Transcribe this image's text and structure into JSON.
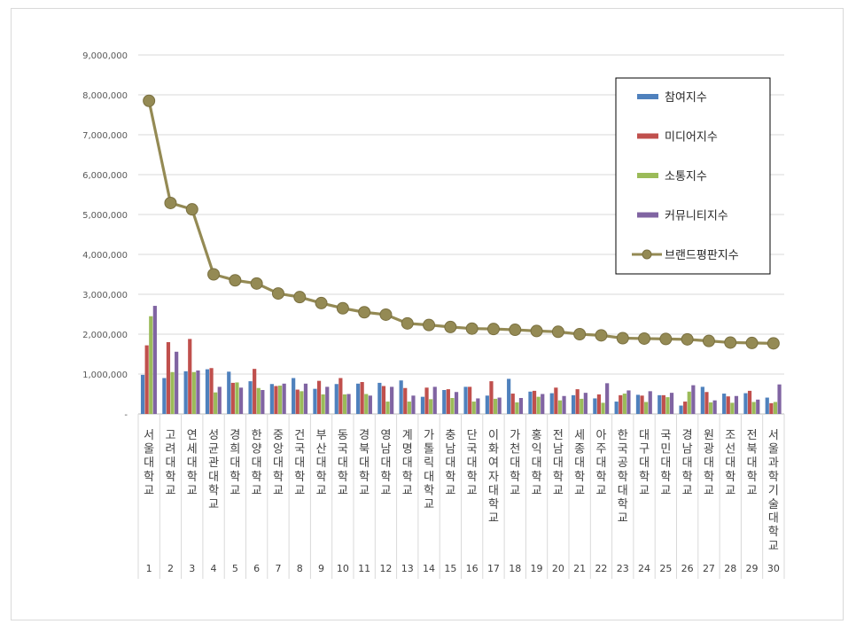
{
  "chart_data": {
    "type": "bar",
    "title": "",
    "xlabel": "",
    "ylabel": "",
    "ylim": [
      0,
      9000000
    ],
    "yticks": [
      0,
      1000000,
      2000000,
      3000000,
      4000000,
      5000000,
      6000000,
      7000000,
      8000000,
      9000000
    ],
    "ytick_labels": [
      "-",
      "1,000,000",
      "2,000,000",
      "3,000,000",
      "4,000,000",
      "5,000,000",
      "6,000,000",
      "7,000,000",
      "8,000,000",
      "9,000,000"
    ],
    "grid": true,
    "legend_position": "top-right",
    "ranks": [
      "1",
      "2",
      "3",
      "4",
      "5",
      "6",
      "7",
      "8",
      "9",
      "10",
      "11",
      "12",
      "13",
      "14",
      "15",
      "16",
      "17",
      "18",
      "19",
      "20",
      "21",
      "22",
      "23",
      "24",
      "25",
      "26",
      "27",
      "28",
      "29",
      "30"
    ],
    "categories": [
      "서울대학교",
      "고려대학교",
      "연세대학교",
      "성균관대학교",
      "경희대학교",
      "한양대학교",
      "중앙대학교",
      "건국대학교",
      "부산대학교",
      "동국대학교",
      "경북대학교",
      "영남대학교",
      "계명대학교",
      "가톨릭대학교",
      "충남대학교",
      "단국대학교",
      "이화여자대학교",
      "가천대학교",
      "홍익대학교",
      "전남대학교",
      "세종대학교",
      "아주대학교",
      "한국공학대학교",
      "대구대학교",
      "국민대학교",
      "경남대학교",
      "원광대학교",
      "조선대학교",
      "전북대학교",
      "서울과학기술대학교"
    ],
    "series": [
      {
        "name": "참여지수",
        "type": "bar",
        "color": "#4f81bd",
        "values": [
          980000,
          900000,
          1070000,
          1120000,
          1060000,
          820000,
          750000,
          900000,
          630000,
          750000,
          760000,
          780000,
          840000,
          430000,
          600000,
          680000,
          460000,
          880000,
          560000,
          520000,
          470000,
          390000,
          310000,
          480000,
          470000,
          210000,
          680000,
          510000,
          520000,
          410000
        ]
      },
      {
        "name": "미디어지수",
        "type": "bar",
        "color": "#c0504d",
        "values": [
          1720000,
          1800000,
          1880000,
          1150000,
          780000,
          1130000,
          700000,
          610000,
          830000,
          900000,
          800000,
          700000,
          650000,
          660000,
          620000,
          680000,
          820000,
          510000,
          580000,
          660000,
          620000,
          490000,
          470000,
          460000,
          470000,
          310000,
          550000,
          440000,
          580000,
          270000
        ]
      },
      {
        "name": "소통지수",
        "type": "bar",
        "color": "#9bbb59",
        "values": [
          2450000,
          1050000,
          1050000,
          540000,
          790000,
          650000,
          710000,
          570000,
          490000,
          490000,
          500000,
          310000,
          310000,
          370000,
          400000,
          310000,
          380000,
          290000,
          430000,
          340000,
          380000,
          280000,
          510000,
          300000,
          420000,
          560000,
          290000,
          280000,
          300000,
          300000
        ]
      },
      {
        "name": "커뮤니티지수",
        "type": "bar",
        "color": "#8064a2",
        "values": [
          2710000,
          1560000,
          1090000,
          680000,
          660000,
          600000,
          760000,
          760000,
          680000,
          500000,
          460000,
          680000,
          460000,
          680000,
          550000,
          390000,
          410000,
          400000,
          500000,
          450000,
          530000,
          770000,
          590000,
          570000,
          530000,
          720000,
          340000,
          450000,
          360000,
          740000
        ]
      },
      {
        "name": "브랜드평판지수",
        "type": "line",
        "color": "#948a54",
        "values": [
          7850000,
          5290000,
          5130000,
          3500000,
          3350000,
          3270000,
          3020000,
          2930000,
          2780000,
          2650000,
          2550000,
          2490000,
          2270000,
          2230000,
          2180000,
          2140000,
          2130000,
          2110000,
          2080000,
          2060000,
          2000000,
          1970000,
          1900000,
          1890000,
          1880000,
          1870000,
          1830000,
          1790000,
          1780000,
          1770000
        ]
      }
    ]
  }
}
